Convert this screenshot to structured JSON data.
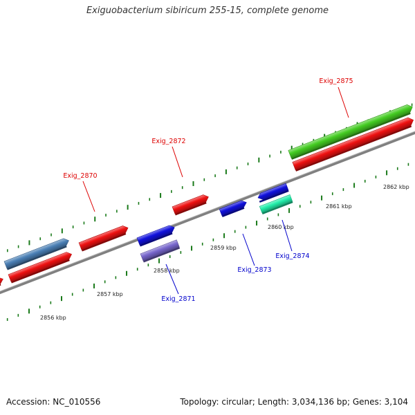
{
  "title": "Exiguobacterium sibiricum 255-15, complete genome",
  "accession": "Accession: NC_010556",
  "summary": "Topology: circular; Length: 3,034,136 bp; Genes: 3,104",
  "colors": {
    "backbone": "#808080",
    "tick_dot": "#1a7a1a",
    "label_forward": "#dd0000",
    "label_reverse": "#0000cc"
  },
  "scale_labels": [
    "2856 kbp",
    "2857 kbp",
    "2858 kbp",
    "2859 kbp",
    "2860 kbp",
    "2861 kbp",
    "2862 kbp"
  ],
  "gene_labels": [
    {
      "text": "Exig_2870",
      "strand": "forward"
    },
    {
      "text": "Exig_2871",
      "strand": "reverse"
    },
    {
      "text": "Exig_2872",
      "strand": "forward"
    },
    {
      "text": "Exig_2873",
      "strand": "reverse"
    },
    {
      "text": "Exig_2874",
      "strand": "reverse"
    },
    {
      "text": "Exig_2875",
      "strand": "forward"
    }
  ],
  "features": [
    {
      "name": "feature-red-left-edge",
      "color": "#ee1111"
    },
    {
      "name": "feature-steelblue",
      "color": "#4a7fb5"
    },
    {
      "name": "feature-red-1",
      "color": "#ee1111"
    },
    {
      "name": "feature-red-exig-2870",
      "color": "#ee1111"
    },
    {
      "name": "feature-blue-exig-2871",
      "color": "#1111dd"
    },
    {
      "name": "feature-purple-exig-2871",
      "color": "#7766cc"
    },
    {
      "name": "feature-red-exig-2872",
      "color": "#ee1111"
    },
    {
      "name": "feature-blue-exig-2873",
      "color": "#1111dd"
    },
    {
      "name": "feature-blue-exig-2874",
      "color": "#1111dd"
    },
    {
      "name": "feature-aqua-exig-2874",
      "color": "#22eeaa"
    },
    {
      "name": "feature-green-exig-2875",
      "color": "#44cc22"
    },
    {
      "name": "feature-red-exig-2875",
      "color": "#ee1111"
    }
  ]
}
